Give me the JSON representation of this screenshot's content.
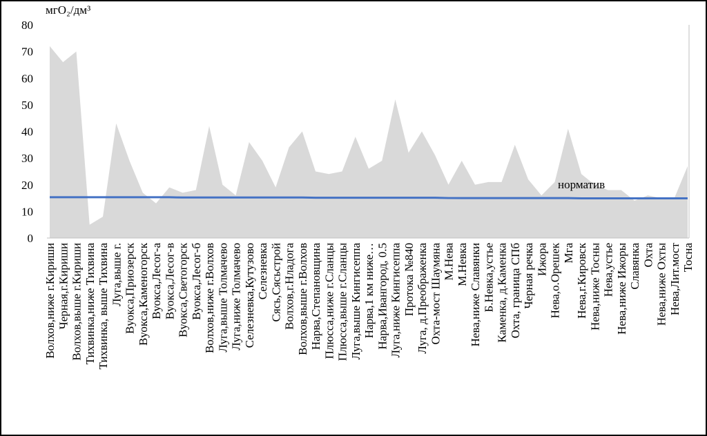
{
  "chart_data": {
    "type": "area",
    "unit_label": "мгO₂/дм³",
    "categories": [
      "Волхов,ниже г.Кириши",
      "Черная,г.Кириши",
      "Волхов,выше г.Кириши",
      "Тихвинка,ниже Тихвина",
      "Тихвинка, выше Тихвина",
      "Луга,выше г.",
      "Вуокса,Приозерск",
      "Вуокса,Каменогорск",
      "Вуокса,Лесог-а",
      "Вуокса,Лесог-в",
      "Вуокса,Светогорск",
      "Вуокса,Лесог-б",
      "Волхов,ниже г.Волхов",
      "Луга,выше Толмачево",
      "Луга,ниже Толмачево",
      "Селезневка,Кутузово",
      "Селезневка",
      "Сясь,Сясьстрой",
      "Волхов,г.Нладога",
      "Волхов,выше г.Волхов",
      "Нарва,Степановщина",
      "Плюсса,ниже г.Сланцы",
      "Плюсса,выше г.Сланцы",
      "Луга,выше Кингисеппа",
      "Нарва,1 км ниже…",
      "Нарва,Ивангород, 0.5",
      "Луга,ниже Кингисеппа",
      "Протока №840",
      "Луга, д.Преображенка",
      "Охта-мост Шаумяна",
      "М.Нева",
      "М.Невка",
      "Нева,ниже Славянки",
      "Б.Невка,устье",
      "Каменка, д.Каменка",
      "Охта,  граница СПб",
      "Черная речка",
      "Ижора",
      "Нева,о.Орешек",
      "Мга",
      "Нева,г.Кировск",
      "Нева,ниже Тосны",
      "Нева,устье",
      "Нева,ниже Ижоры",
      "Славянка",
      "Охта",
      "Нева,ниже Охты",
      "Нева,Лит.мост",
      "Тосна"
    ],
    "series": [
      {
        "name": "",
        "color": "#d9d9d9",
        "kind": "area",
        "values": [
          72,
          66,
          70,
          5,
          8,
          43,
          29,
          17,
          13,
          19,
          17,
          18,
          42,
          20,
          16,
          36,
          29,
          19,
          34,
          40,
          25,
          24,
          25,
          38,
          26,
          29,
          52,
          32,
          40,
          31,
          20,
          29,
          20,
          21,
          21,
          35,
          22,
          16,
          21,
          41,
          24,
          20,
          18,
          18,
          14,
          16,
          15,
          15,
          27
        ]
      },
      {
        "name": "норматив",
        "color": "#4472c4",
        "kind": "line",
        "values": [
          15.3,
          15.3,
          15.3,
          15.3,
          15.3,
          15.3,
          15.3,
          15.3,
          15.3,
          15.3,
          15.2,
          15.2,
          15.2,
          15.2,
          15.2,
          15.2,
          15.2,
          15.2,
          15.2,
          15.2,
          15.1,
          15.1,
          15.1,
          15.1,
          15.1,
          15.1,
          15.1,
          15.1,
          15.1,
          15.1,
          15,
          15,
          15,
          15,
          15,
          15,
          15,
          15,
          15,
          15,
          14.9,
          14.9,
          14.9,
          14.9,
          14.9,
          14.9,
          14.9,
          14.9,
          14.9
        ]
      }
    ],
    "ylim": [
      0,
      80
    ],
    "yticks": [
      0,
      10,
      20,
      30,
      40,
      50,
      60,
      70,
      80
    ]
  }
}
